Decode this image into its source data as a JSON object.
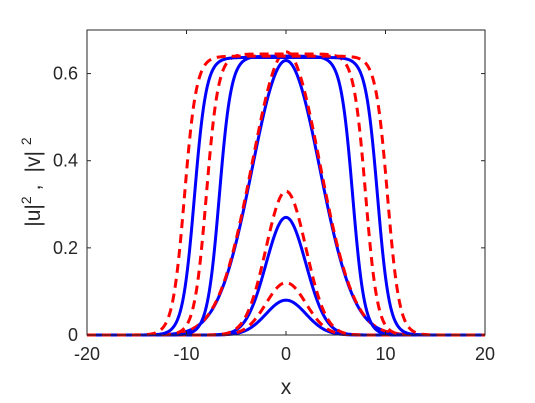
{
  "chart_data": {
    "type": "line",
    "title": "",
    "xlabel": "x",
    "ylabel": "|u|², |v|²",
    "ylabel_parts": [
      "|u|",
      "2",
      ",",
      "|v|",
      "2"
    ],
    "xlim": [
      -20,
      20
    ],
    "ylim": [
      0,
      0.7
    ],
    "grid": false,
    "legend": "none",
    "x_ticks": [
      -20,
      -10,
      0,
      10,
      20
    ],
    "x_tick_labels": [
      "-20",
      "-10",
      "0",
      "10",
      "20"
    ],
    "y_ticks": [
      0,
      0.2,
      0.4,
      0.6
    ],
    "y_tick_labels": [
      "0",
      "0.2",
      "0.4",
      "0.6"
    ],
    "colors": {
      "u": "#0000ff",
      "v": "#ff0000",
      "axes": "#262626",
      "background": "#ffffff"
    },
    "series": [
      {
        "component": "u",
        "style": "solid",
        "amplitude": 0.08,
        "shape": "gaussian",
        "width": 2.0
      },
      {
        "component": "v",
        "style": "dashed",
        "amplitude": 0.12,
        "shape": "gaussian",
        "width": 2.0
      },
      {
        "component": "u",
        "style": "solid",
        "amplitude": 0.27,
        "shape": "gaussian",
        "width": 2.0
      },
      {
        "component": "v",
        "style": "dashed",
        "amplitude": 0.33,
        "shape": "gaussian",
        "width": 2.0
      },
      {
        "component": "u",
        "style": "solid",
        "amplitude": 0.63,
        "shape": "gaussian",
        "width": 3.4
      },
      {
        "component": "v",
        "style": "dashed",
        "amplitude": 0.65,
        "shape": "gaussian",
        "width": 3.4
      },
      {
        "component": "u",
        "style": "solid",
        "amplitude": 0.64,
        "shape": "flat-top",
        "half_width": 6.7,
        "edge": 1.2
      },
      {
        "component": "v",
        "style": "dashed",
        "amplitude": 0.645,
        "shape": "flat-top",
        "half_width": 8.0,
        "edge": 1.2
      },
      {
        "component": "u",
        "style": "solid",
        "amplitude": 0.637,
        "shape": "flat-top",
        "half_width": 9.2,
        "edge": 1.2
      },
      {
        "component": "v",
        "style": "dashed",
        "amplitude": 0.64,
        "shape": "flat-top",
        "half_width": 10.2,
        "edge": 1.2
      }
    ]
  }
}
